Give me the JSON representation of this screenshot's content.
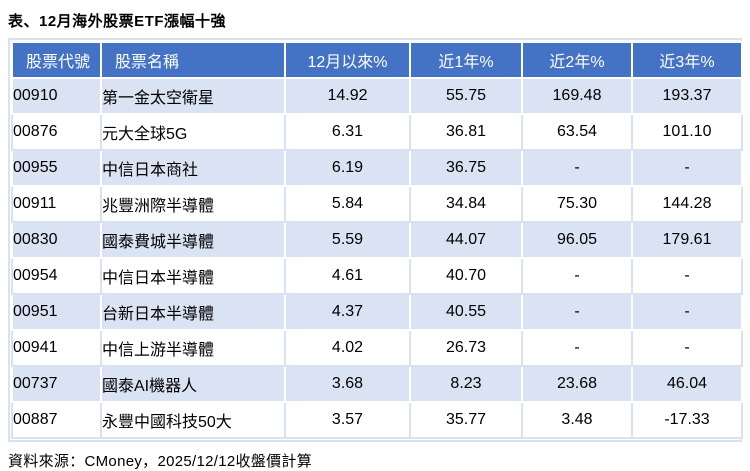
{
  "page": {
    "title": "表、12月海外股票ETF漲幅十強",
    "source_note": "資料來源：CMoney，2025/12/12收盤價計算"
  },
  "table": {
    "columns": [
      "股票代號",
      "股票名稱",
      "12月以來%",
      "近1年%",
      "近2年%",
      "近3年%"
    ],
    "rows": [
      {
        "code": "00910",
        "name": "第一金太空衛星",
        "dec": "14.92",
        "y1": "55.75",
        "y2": "169.48",
        "y3": "193.37"
      },
      {
        "code": "00876",
        "name": "元大全球5G",
        "dec": "6.31",
        "y1": "36.81",
        "y2": "63.54",
        "y3": "101.10"
      },
      {
        "code": "00955",
        "name": "中信日本商社",
        "dec": "6.19",
        "y1": "36.75",
        "y2": "-",
        "y3": "-"
      },
      {
        "code": "00911",
        "name": "兆豐洲際半導體",
        "dec": "5.84",
        "y1": "34.84",
        "y2": "75.30",
        "y3": "144.28"
      },
      {
        "code": "00830",
        "name": "國泰費城半導體",
        "dec": "5.59",
        "y1": "44.07",
        "y2": "96.05",
        "y3": "179.61"
      },
      {
        "code": "00954",
        "name": "中信日本半導體",
        "dec": "4.61",
        "y1": "40.70",
        "y2": "-",
        "y3": "-"
      },
      {
        "code": "00951",
        "name": "台新日本半導體",
        "dec": "4.37",
        "y1": "40.55",
        "y2": "-",
        "y3": "-"
      },
      {
        "code": "00941",
        "name": "中信上游半導體",
        "dec": "4.02",
        "y1": "26.73",
        "y2": "-",
        "y3": "-"
      },
      {
        "code": "00737",
        "name": "國泰AI機器人",
        "dec": "3.68",
        "y1": "8.23",
        "y2": "23.68",
        "y3": "46.04"
      },
      {
        "code": "00887",
        "name": "永豐中國科技50大",
        "dec": "3.57",
        "y1": "35.77",
        "y2": "3.48",
        "y3": "-17.33"
      }
    ]
  },
  "colors": {
    "header_bg": "#4472C4",
    "header_text": "#FFFFFF",
    "row_alt_bg": "#DAE3F3",
    "row_bg": "#FFFFFF",
    "grid_light": "#D9E2F2"
  }
}
